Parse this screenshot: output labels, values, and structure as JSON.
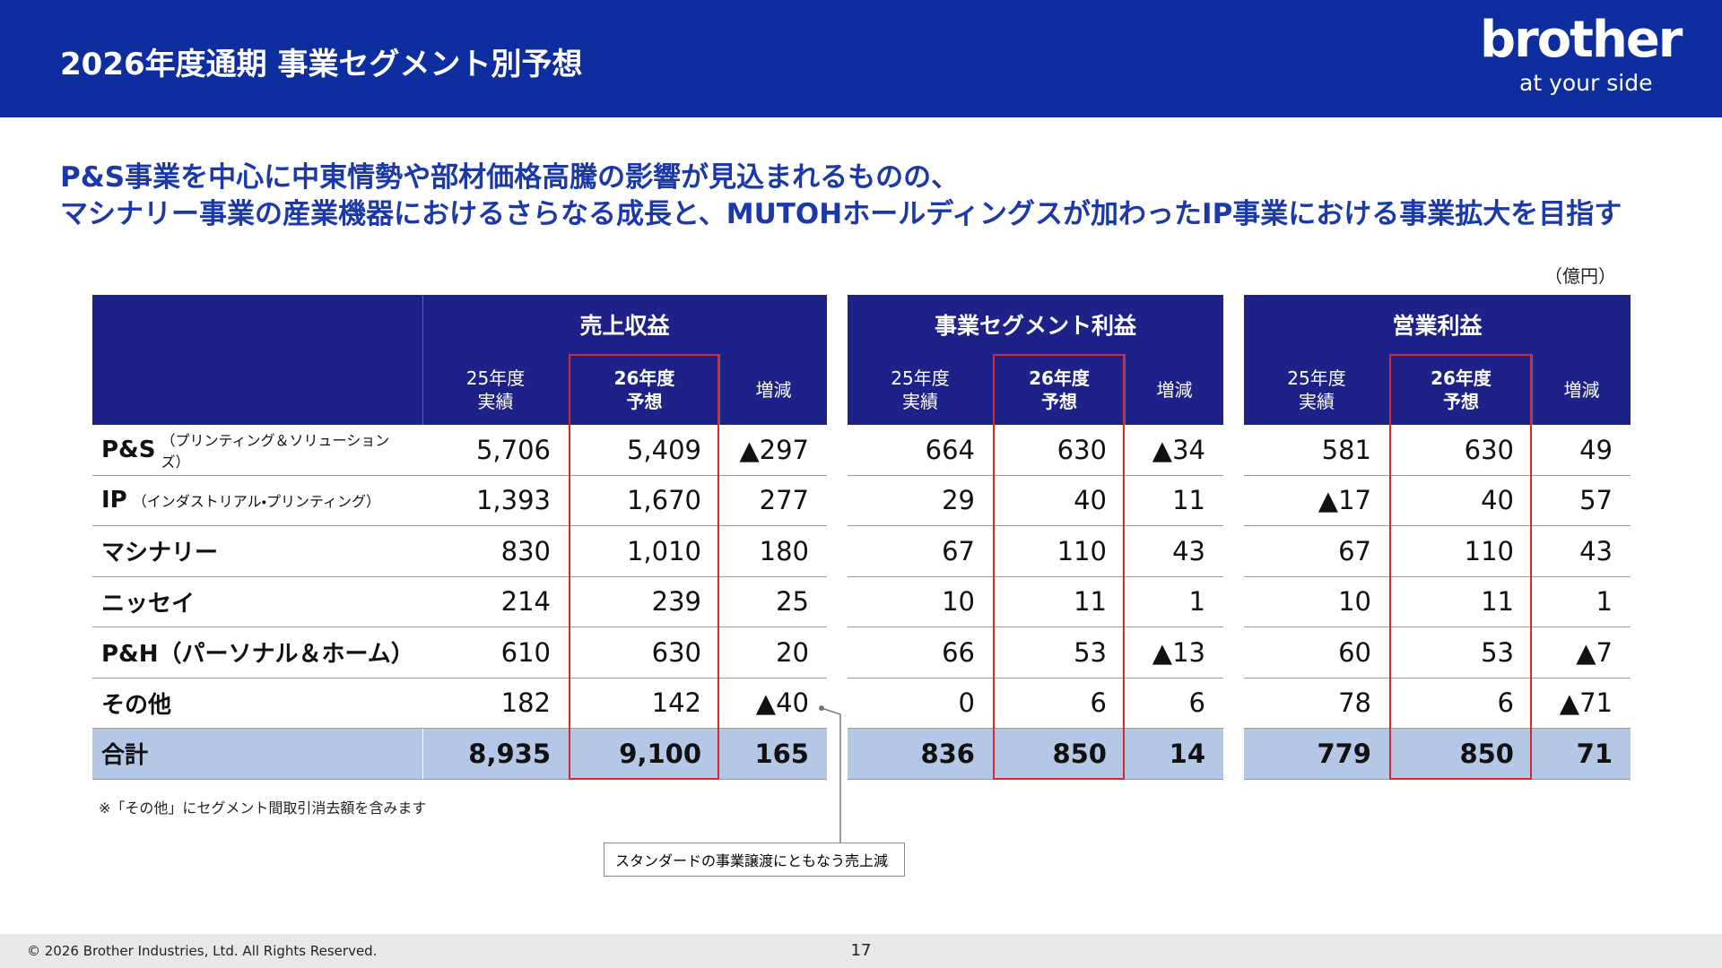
{
  "header": {
    "title": "2026年度通期 事業セグメント別予想",
    "logo": "brother",
    "tagline": "at your side"
  },
  "headline": [
    "P&S事業を中心に中東情勢や部材価格高騰の影響が見込まれるものの、",
    "マシナリー事業の産業機器におけるさらなる成長と、MUTOHホールディングスが加わったIP事業における事業拡大を目指す"
  ],
  "unit": "（億円）",
  "table": {
    "groups": [
      {
        "title": "売上収益",
        "columns": [
          [
            "25年度",
            "実績"
          ],
          [
            "26年度",
            "予想"
          ],
          [
            "増減"
          ]
        ]
      },
      {
        "title": "事業セグメント利益",
        "columns": [
          [
            "25年度",
            "実績"
          ],
          [
            "26年度",
            "予想"
          ],
          [
            "増減"
          ]
        ]
      },
      {
        "title": "営業利益",
        "columns": [
          [
            "25年度",
            "実績"
          ],
          [
            "26年度",
            "予想"
          ],
          [
            "増減"
          ]
        ]
      }
    ],
    "rows": [
      {
        "label": "P&S",
        "note": "（プリンティング＆ソリューションズ）",
        "cells": [
          "5,706",
          "5,409",
          "▲297",
          "664",
          "630",
          "▲34",
          "581",
          "630",
          "49"
        ]
      },
      {
        "label": "IP",
        "note": "（インダストリアル・プリンティング）",
        "cells": [
          "1,393",
          "1,670",
          "277",
          "29",
          "40",
          "11",
          "▲17",
          "40",
          "57"
        ]
      },
      {
        "label": "マシナリー",
        "cells": [
          "830",
          "1,010",
          "180",
          "67",
          "110",
          "43",
          "67",
          "110",
          "43"
        ]
      },
      {
        "label": "ニッセイ",
        "cells": [
          "214",
          "239",
          "25",
          "10",
          "11",
          "1",
          "10",
          "11",
          "1"
        ]
      },
      {
        "label": "P&H（パーソナル＆ホーム）",
        "cells": [
          "610",
          "630",
          "20",
          "66",
          "53",
          "▲13",
          "60",
          "53",
          "▲7"
        ]
      },
      {
        "label": "その他",
        "cells": [
          "182",
          "142",
          "▲40",
          "0",
          "6",
          "6",
          "78",
          "6",
          "▲71"
        ]
      }
    ],
    "total": {
      "label": "合計",
      "cells": [
        "8,935",
        "9,100",
        "165",
        "836",
        "850",
        "14",
        "779",
        "850",
        "71"
      ]
    }
  },
  "footnote": "※「その他」にセグメント間取引消去額を含みます",
  "callout": "スタンダードの事業譲渡にともなう売上減",
  "footer": {
    "copyright": "© 2026 Brother Industries, Ltd. All Rights Reserved.",
    "page": "17"
  }
}
